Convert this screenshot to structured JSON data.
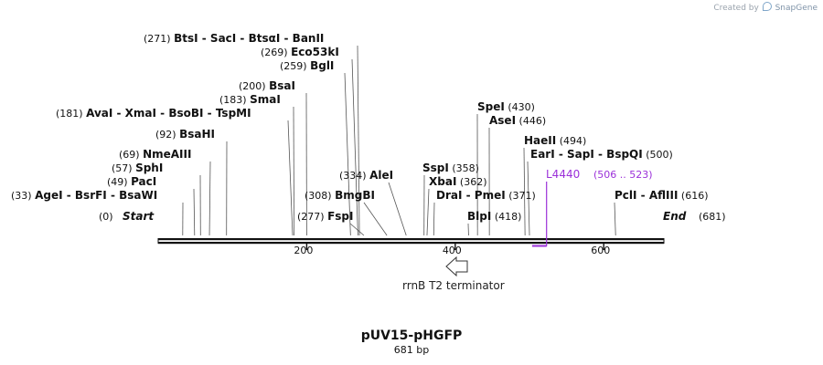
{
  "credit": {
    "prefix": "Created by",
    "brand": "SnapGene"
  },
  "plasmid": {
    "name": "pUV15-pHGFP",
    "size_label": "681 bp",
    "length": 681
  },
  "ticks": [
    {
      "pos": 200,
      "label": "200"
    },
    {
      "pos": 400,
      "label": "400"
    },
    {
      "pos": 600,
      "label": "600"
    }
  ],
  "ends": [
    {
      "name": "Start",
      "pos_label": "(0)",
      "pos": 0
    },
    {
      "name": "End",
      "pos_label": "(681)",
      "pos": 681
    }
  ],
  "site_groups": [
    {
      "pos": 33,
      "pos_label": "(33)",
      "names": [
        "AgeI",
        "BsrFI",
        "BsaWI"
      ]
    },
    {
      "pos": 49,
      "pos_label": "(49)",
      "names": [
        "PacI"
      ]
    },
    {
      "pos": 57,
      "pos_label": "(57)",
      "names": [
        "SphI"
      ]
    },
    {
      "pos": 69,
      "pos_label": "(69)",
      "names": [
        "NmeAIII"
      ]
    },
    {
      "pos": 92,
      "pos_label": "(92)",
      "names": [
        "BsaHI"
      ]
    },
    {
      "pos": 181,
      "pos_label": "(181)",
      "names": [
        "AvaI",
        "XmaI",
        "BsoBI",
        "TspMI"
      ]
    },
    {
      "pos": 183,
      "pos_label": "(183)",
      "names": [
        "SmaI"
      ]
    },
    {
      "pos": 200,
      "pos_label": "(200)",
      "names": [
        "BsaI"
      ]
    },
    {
      "pos": 259,
      "pos_label": "(259)",
      "names": [
        "BglI"
      ]
    },
    {
      "pos": 269,
      "pos_label": "(269)",
      "names": [
        "Eco53kI"
      ]
    },
    {
      "pos": 271,
      "pos_label": "(271)",
      "names": [
        "BtsI",
        "SacI",
        "BtsαI",
        "BanII"
      ]
    },
    {
      "pos": 277,
      "pos_label": "(277)",
      "names": [
        "FspI"
      ]
    },
    {
      "pos": 308,
      "pos_label": "(308)",
      "names": [
        "BmgBI"
      ]
    },
    {
      "pos": 334,
      "pos_label": "(334)",
      "names": [
        "AleI"
      ]
    },
    {
      "pos": 358,
      "pos_label": "(358)",
      "names": [
        "SspI"
      ]
    },
    {
      "pos": 362,
      "pos_label": "(362)",
      "names": [
        "XbaI"
      ]
    },
    {
      "pos": 371,
      "pos_label": "(371)",
      "names": [
        "DraI",
        "PmeI"
      ]
    },
    {
      "pos": 418,
      "pos_label": "(418)",
      "names": [
        "BlpI"
      ]
    },
    {
      "pos": 430,
      "pos_label": "(430)",
      "names": [
        "SpeI"
      ]
    },
    {
      "pos": 446,
      "pos_label": "(446)",
      "names": [
        "AseI"
      ]
    },
    {
      "pos": 494,
      "pos_label": "(494)",
      "names": [
        "HaeII"
      ]
    },
    {
      "pos": 500,
      "pos_label": "(500)",
      "names": [
        "EarI",
        "SapI",
        "BspQI"
      ]
    },
    {
      "pos": 616,
      "pos_label": "(616)",
      "names": [
        "PclI",
        "AflIII"
      ]
    }
  ],
  "primer": {
    "name": "L4440",
    "range_label": "(506 .. 523)",
    "start": 506,
    "end": 523,
    "color": "#9b30d9"
  },
  "feature": {
    "name": "rrnB T2 terminator",
    "direction": "reverse",
    "start": 399,
    "end": 427
  }
}
